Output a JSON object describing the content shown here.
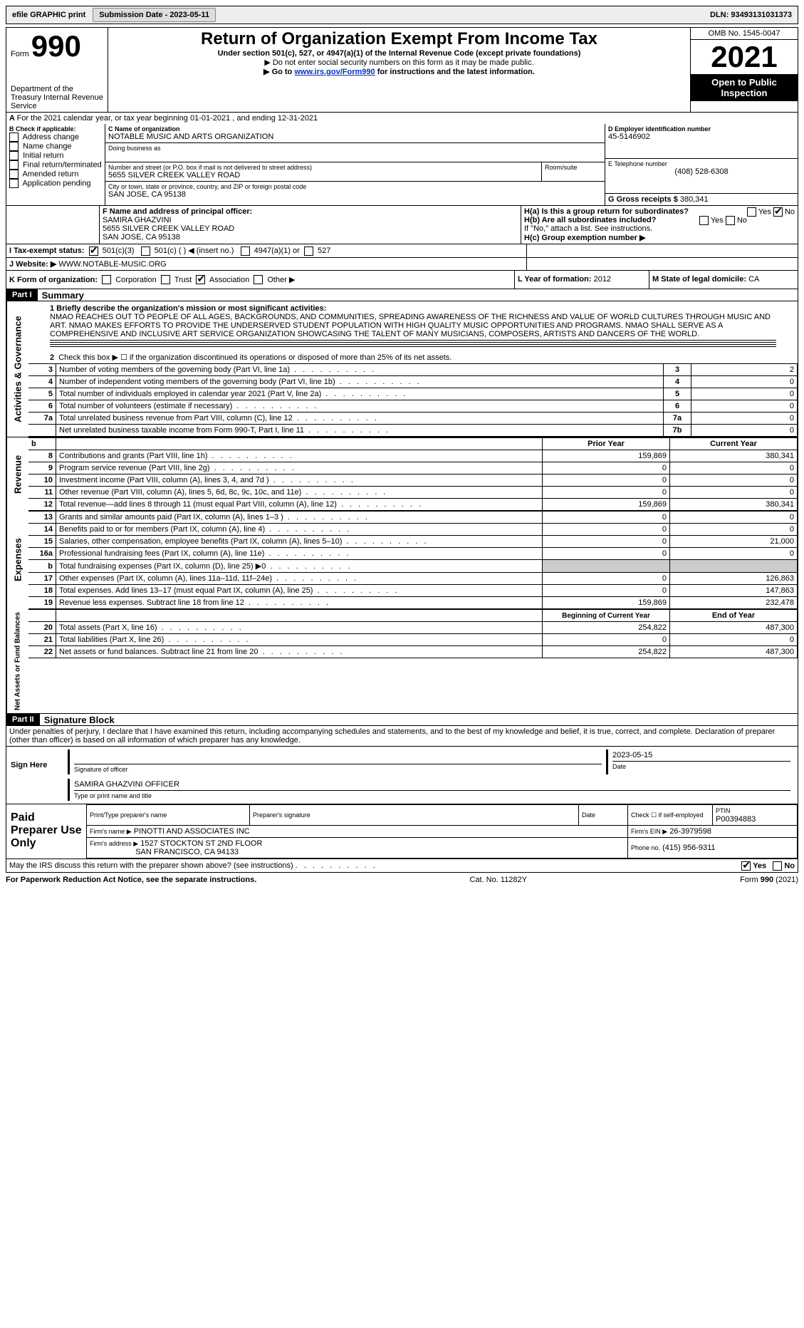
{
  "topbar": {
    "efile": "efile GRAPHIC print",
    "submission_label": "Submission Date - 2023-05-11",
    "dln_label": "DLN: 93493131031373"
  },
  "header": {
    "form_word": "Form",
    "form_number": "990",
    "dept": "Department of the Treasury Internal Revenue Service",
    "title": "Return of Organization Exempt From Income Tax",
    "subtitle": "Under section 501(c), 527, or 4947(a)(1) of the Internal Revenue Code (except private foundations)",
    "note1": "▶ Do not enter social security numbers on this form as it may be made public.",
    "note2_a": "▶ Go to ",
    "note2_link": "www.irs.gov/Form990",
    "note2_b": " for instructions and the latest information.",
    "omb": "OMB No. 1545-0047",
    "year": "2021",
    "open": "Open to Public Inspection"
  },
  "periodA": "For the 2021 calendar year, or tax year beginning 01-01-2021    , and ending 12-31-2021",
  "boxB": {
    "title": "B Check if applicable:",
    "opts": [
      "Address change",
      "Name change",
      "Initial return",
      "Final return/terminated",
      "Amended return",
      "Application pending"
    ]
  },
  "boxC": {
    "name_label": "C Name of organization",
    "name": "NOTABLE MUSIC AND ARTS ORGANIZATION",
    "dba_label": "Doing business as",
    "street_label": "Number and street (or P.O. box if mail is not delivered to street address)",
    "street": "5655 SILVER CREEK VALLEY ROAD",
    "room_label": "Room/suite",
    "city_label": "City or town, state or province, country, and ZIP or foreign postal code",
    "city": "SAN JOSE, CA  95138"
  },
  "boxD": {
    "label": "D Employer identification number",
    "value": "45-5146902"
  },
  "boxE": {
    "label": "E Telephone number",
    "value": "(408) 528-6308"
  },
  "boxG": {
    "label": "G Gross receipts $",
    "value": "380,341"
  },
  "boxF": {
    "label": "F  Name and address of principal officer:",
    "name": "SAMIRA GHAZVINI",
    "addr1": "5655 SILVER CREEK VALLEY ROAD",
    "addr2": "SAN JOSE, CA  95138"
  },
  "boxH": {
    "a": "H(a)  Is this a group return for subordinates?",
    "b": "H(b)  Are all subordinates included?",
    "note": "If \"No,\" attach a list. See instructions.",
    "c": "H(c)  Group exemption number ▶",
    "yes": "Yes",
    "no": "No"
  },
  "boxI": {
    "label": "I   Tax-exempt status:",
    "o1": "501(c)(3)",
    "o2": "501(c) (  ) ◀ (insert no.)",
    "o3": "4947(a)(1) or",
    "o4": "527"
  },
  "boxJ": {
    "label": "J   Website: ▶",
    "value": "WWW.NOTABLE-MUSIC.ORG"
  },
  "boxK": {
    "label": "K Form of organization:",
    "opts": [
      "Corporation",
      "Trust",
      "Association",
      "Other ▶"
    ]
  },
  "boxL": {
    "label": "L Year of formation:",
    "value": "2012"
  },
  "boxM": {
    "label": "M State of legal domicile:",
    "value": "CA"
  },
  "part1": {
    "label": "Part I",
    "title": "Summary",
    "q1_label": "1  Briefly describe the organization's mission or most significant activities:",
    "q1_text": "NMAO REACHES OUT TO PEOPLE OF ALL AGES, BACKGROUNDS, AND COMMUNITIES, SPREADING AWARENESS OF THE RICHNESS AND VALUE OF WORLD CULTURES THROUGH MUSIC AND ART. NMAO MAKES EFFORTS TO PROVIDE THE UNDERSERVED STUDENT POPULATION WITH HIGH QUALITY MUSIC OPPORTUNITIES AND PROGRAMS. NMAO SHALL SERVE AS A COMPREHENSIVE AND INCLUSIVE ART SERVICE ORGANIZATION SHOWCASING THE TALENT OF MANY MUSICIANS, COMPOSERS, ARTISTS AND DANCERS OF THE WORLD."
  },
  "governance_rows": [
    {
      "n": "2",
      "t": "Check this box ▶ ☐  if the organization discontinued its operations or disposed of more than 25% of its net assets.",
      "ln": "",
      "v": ""
    },
    {
      "n": "3",
      "t": "Number of voting members of the governing body (Part VI, line 1a)",
      "ln": "3",
      "v": "2"
    },
    {
      "n": "4",
      "t": "Number of independent voting members of the governing body (Part VI, line 1b)",
      "ln": "4",
      "v": "0"
    },
    {
      "n": "5",
      "t": "Total number of individuals employed in calendar year 2021 (Part V, line 2a)",
      "ln": "5",
      "v": "0"
    },
    {
      "n": "6",
      "t": "Total number of volunteers (estimate if necessary)",
      "ln": "6",
      "v": "0"
    },
    {
      "n": "7a",
      "t": "Total unrelated business revenue from Part VIII, column (C), line 12",
      "ln": "7a",
      "v": "0"
    },
    {
      "n": "",
      "t": "Net unrelated business taxable income from Form 990-T, Part I, line 11",
      "ln": "7b",
      "v": "0"
    }
  ],
  "colheads": {
    "b": "b",
    "prior": "Prior Year",
    "current": "Current Year"
  },
  "revenue_rows": [
    {
      "n": "8",
      "t": "Contributions and grants (Part VIII, line 1h)",
      "p": "159,869",
      "c": "380,341"
    },
    {
      "n": "9",
      "t": "Program service revenue (Part VIII, line 2g)",
      "p": "0",
      "c": "0"
    },
    {
      "n": "10",
      "t": "Investment income (Part VIII, column (A), lines 3, 4, and 7d )",
      "p": "0",
      "c": "0"
    },
    {
      "n": "11",
      "t": "Other revenue (Part VIII, column (A), lines 5, 6d, 8c, 9c, 10c, and 11e)",
      "p": "0",
      "c": "0"
    },
    {
      "n": "12",
      "t": "Total revenue—add lines 8 through 11 (must equal Part VIII, column (A), line 12)",
      "p": "159,869",
      "c": "380,341"
    }
  ],
  "expense_rows": [
    {
      "n": "13",
      "t": "Grants and similar amounts paid (Part IX, column (A), lines 1–3 )",
      "p": "0",
      "c": "0"
    },
    {
      "n": "14",
      "t": "Benefits paid to or for members (Part IX, column (A), line 4)",
      "p": "0",
      "c": "0"
    },
    {
      "n": "15",
      "t": "Salaries, other compensation, employee benefits (Part IX, column (A), lines 5–10)",
      "p": "0",
      "c": "21,000"
    },
    {
      "n": "16a",
      "t": "Professional fundraising fees (Part IX, column (A), line 11e)",
      "p": "0",
      "c": "0"
    },
    {
      "n": "b",
      "t": "Total fundraising expenses (Part IX, column (D), line 25) ▶0",
      "p": "shade",
      "c": "shade"
    },
    {
      "n": "17",
      "t": "Other expenses (Part IX, column (A), lines 11a–11d, 11f–24e)",
      "p": "0",
      "c": "126,863"
    },
    {
      "n": "18",
      "t": "Total expenses. Add lines 13–17 (must equal Part IX, column (A), line 25)",
      "p": "0",
      "c": "147,863"
    },
    {
      "n": "19",
      "t": "Revenue less expenses. Subtract line 18 from line 12",
      "p": "159,869",
      "c": "232,478"
    }
  ],
  "netassets_heads": {
    "b": "Beginning of Current Year",
    "e": "End of Year"
  },
  "netassets_rows": [
    {
      "n": "20",
      "t": "Total assets (Part X, line 16)",
      "p": "254,822",
      "c": "487,300"
    },
    {
      "n": "21",
      "t": "Total liabilities (Part X, line 26)",
      "p": "0",
      "c": "0"
    },
    {
      "n": "22",
      "t": "Net assets or fund balances. Subtract line 21 from line 20",
      "p": "254,822",
      "c": "487,300"
    }
  ],
  "part2": {
    "label": "Part II",
    "title": "Signature Block",
    "declaration": "Under penalties of perjury, I declare that I have examined this return, including accompanying schedules and statements, and to the best of my knowledge and belief, it is true, correct, and complete. Declaration of preparer (other than officer) is based on all information of which preparer has any knowledge."
  },
  "sign": {
    "label": "Sign Here",
    "sig_label": "Signature of officer",
    "date": "2023-05-15",
    "date_label": "Date",
    "name": "SAMIRA GHAZVINI  OFFICER",
    "name_label": "Type or print name and title"
  },
  "preparer": {
    "label": "Paid Preparer Use Only",
    "pt_name_label": "Print/Type preparer's name",
    "sig_label": "Preparer's signature",
    "date_label": "Date",
    "check_label": "Check ☐ if self-employed",
    "ptin_label": "PTIN",
    "ptin": "P00394883",
    "firm_name_label": "Firm's name    ▶",
    "firm_name": "PINOTTI AND ASSOCIATES INC",
    "ein_label": "Firm's EIN ▶",
    "ein": "26-3979598",
    "addr_label": "Firm's address ▶",
    "addr1": "1527 STOCKTON ST 2ND FLOOR",
    "addr2": "SAN FRANCISCO, CA  94133",
    "phone_label": "Phone no.",
    "phone": "(415) 956-9311"
  },
  "discuss": {
    "q": "May the IRS discuss this return with the preparer shown above? (see instructions)",
    "yes": "Yes",
    "no": "No"
  },
  "footer": {
    "left": "For Paperwork Reduction Act Notice, see the separate instructions.",
    "mid": "Cat. No. 11282Y",
    "right": "Form 990 (2021)"
  },
  "vlabels": {
    "gov": "Activities & Governance",
    "rev": "Revenue",
    "exp": "Expenses",
    "net": "Net Assets or Fund Balances"
  }
}
